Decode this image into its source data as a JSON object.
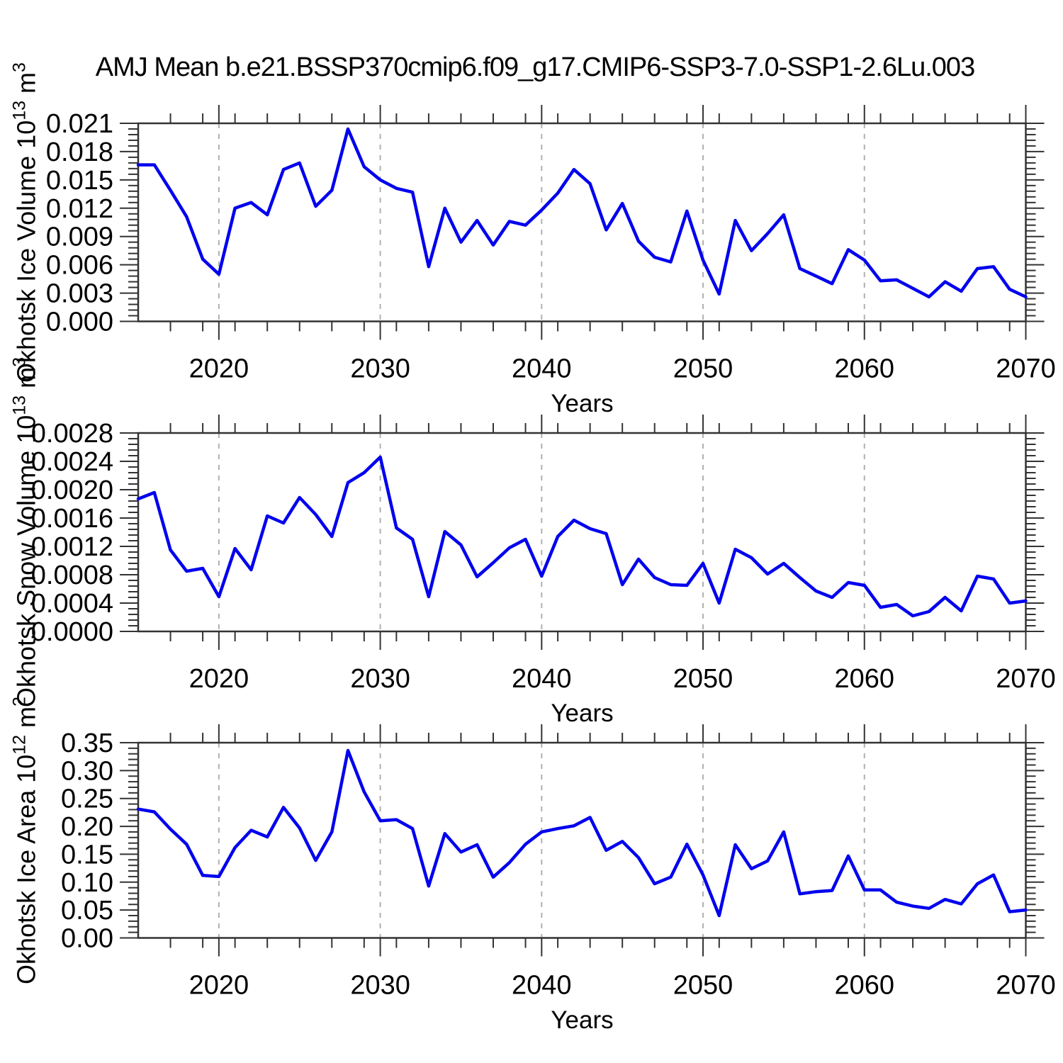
{
  "title": "AMJ Mean b.e21.BSSP370cmip6.f09_g17.CMIP6-SSP3-7.0-SSP1-2.6Lu.003",
  "colors": {
    "line": "#0000ee",
    "grid": "#b0b0b0",
    "axis": "#333333",
    "text": "#000000",
    "background": "#ffffff"
  },
  "x_axis": {
    "label": "Years",
    "start": 2015,
    "end": 2070,
    "tick_labels": [
      "2020",
      "2030",
      "2040",
      "2050",
      "2060",
      "2070"
    ],
    "major_tick_years": [
      2020,
      2030,
      2040,
      2050,
      2060,
      2070
    ],
    "minor_tick_step_years": 2,
    "gridline_years": [
      2020,
      2030,
      2040,
      2050,
      2060
    ]
  },
  "years": [
    2015,
    2016,
    2017,
    2018,
    2019,
    2020,
    2021,
    2022,
    2023,
    2024,
    2025,
    2026,
    2027,
    2028,
    2029,
    2030,
    2031,
    2032,
    2033,
    2034,
    2035,
    2036,
    2037,
    2038,
    2039,
    2040,
    2041,
    2042,
    2043,
    2044,
    2045,
    2046,
    2047,
    2048,
    2049,
    2050,
    2051,
    2052,
    2053,
    2054,
    2055,
    2056,
    2057,
    2058,
    2059,
    2060,
    2061,
    2062,
    2063,
    2064,
    2065,
    2066,
    2067,
    2068,
    2069,
    2070
  ],
  "chart_data": [
    {
      "type": "line",
      "id": "okhotsk-ice-volume",
      "name": "Okhotsk Ice Volume",
      "ylabel": {
        "base": "Okhotsk Ice Volume 10",
        "exp": "13",
        "unit": " m",
        "unit_exp": "3"
      },
      "xlabel": "Years",
      "ylim": [
        0,
        0.021
      ],
      "ytick_step": 0.003,
      "yminor_divisions": 5,
      "ytick_labels": [
        "0.000",
        "0.003",
        "0.006",
        "0.009",
        "0.012",
        "0.015",
        "0.018",
        "0.021"
      ],
      "grid": "x-dashed",
      "legend": "none",
      "values": [
        0.0166,
        0.0166,
        0.0139,
        0.0111,
        0.0066,
        0.005,
        0.012,
        0.0126,
        0.0113,
        0.0161,
        0.0168,
        0.0122,
        0.0139,
        0.0204,
        0.0164,
        0.015,
        0.0141,
        0.0137,
        0.0058,
        0.012,
        0.0084,
        0.0107,
        0.0081,
        0.0106,
        0.0102,
        0.0118,
        0.0136,
        0.0161,
        0.0146,
        0.0097,
        0.0125,
        0.0085,
        0.0068,
        0.0063,
        0.0117,
        0.0065,
        0.0029,
        0.0107,
        0.0075,
        0.0093,
        0.0113,
        0.0056,
        0.0048,
        0.004,
        0.0076,
        0.0065,
        0.0043,
        0.0044,
        0.0035,
        0.0026,
        0.0042,
        0.0032,
        0.0056,
        0.0058,
        0.0034,
        0.0026
      ]
    },
    {
      "type": "line",
      "id": "okhotsk-snow-volume",
      "name": "Okhotsk Snow Volume",
      "ylabel": {
        "base": "Okhotsk Snow Volume 10",
        "exp": "13",
        "unit": " m",
        "unit_exp": "3"
      },
      "xlabel": "Years",
      "ylim": [
        0,
        0.0028
      ],
      "ytick_step": 0.0004,
      "yminor_divisions": 5,
      "ytick_labels": [
        "0.0000",
        "0.0004",
        "0.0008",
        "0.0012",
        "0.0016",
        "0.0020",
        "0.0024",
        "0.0028"
      ],
      "grid": "x-dashed",
      "legend": "none",
      "values": [
        0.00187,
        0.00196,
        0.00115,
        0.00085,
        0.00089,
        0.00049,
        0.00117,
        0.00087,
        0.00163,
        0.00153,
        0.00189,
        0.00165,
        0.00134,
        0.0021,
        0.00224,
        0.00246,
        0.00146,
        0.0013,
        0.00049,
        0.00141,
        0.00122,
        0.00077,
        0.00097,
        0.00118,
        0.0013,
        0.00078,
        0.00134,
        0.00157,
        0.00145,
        0.00138,
        0.00066,
        0.00102,
        0.00076,
        0.00066,
        0.00065,
        0.00096,
        0.0004,
        0.00116,
        0.00104,
        0.00081,
        0.00096,
        0.00076,
        0.00057,
        0.00048,
        0.00069,
        0.00065,
        0.00034,
        0.00038,
        0.00022,
        0.00028,
        0.00048,
        0.00029,
        0.00078,
        0.00074,
        0.0004,
        0.00043
      ]
    },
    {
      "type": "line",
      "id": "okhotsk-ice-area",
      "name": "Okhotsk Ice Area",
      "ylabel": {
        "base": "Okhotsk Ice Area 10",
        "exp": "12",
        "unit": " m",
        "unit_exp": "2"
      },
      "xlabel": "Years",
      "ylim": [
        0,
        0.35
      ],
      "ytick_step": 0.05,
      "yminor_divisions": 5,
      "ytick_labels": [
        "0.00",
        "0.05",
        "0.10",
        "0.15",
        "0.20",
        "0.25",
        "0.30",
        "0.35"
      ],
      "grid": "x-dashed",
      "legend": "none",
      "values": [
        0.231,
        0.226,
        0.195,
        0.168,
        0.112,
        0.11,
        0.162,
        0.193,
        0.181,
        0.234,
        0.197,
        0.139,
        0.19,
        0.336,
        0.262,
        0.21,
        0.212,
        0.196,
        0.093,
        0.187,
        0.154,
        0.167,
        0.109,
        0.135,
        0.168,
        0.19,
        0.196,
        0.201,
        0.216,
        0.157,
        0.173,
        0.144,
        0.097,
        0.109,
        0.168,
        0.113,
        0.04,
        0.167,
        0.124,
        0.138,
        0.19,
        0.079,
        0.083,
        0.085,
        0.147,
        0.086,
        0.086,
        0.064,
        0.057,
        0.053,
        0.069,
        0.061,
        0.097,
        0.113,
        0.047,
        0.05
      ]
    }
  ]
}
